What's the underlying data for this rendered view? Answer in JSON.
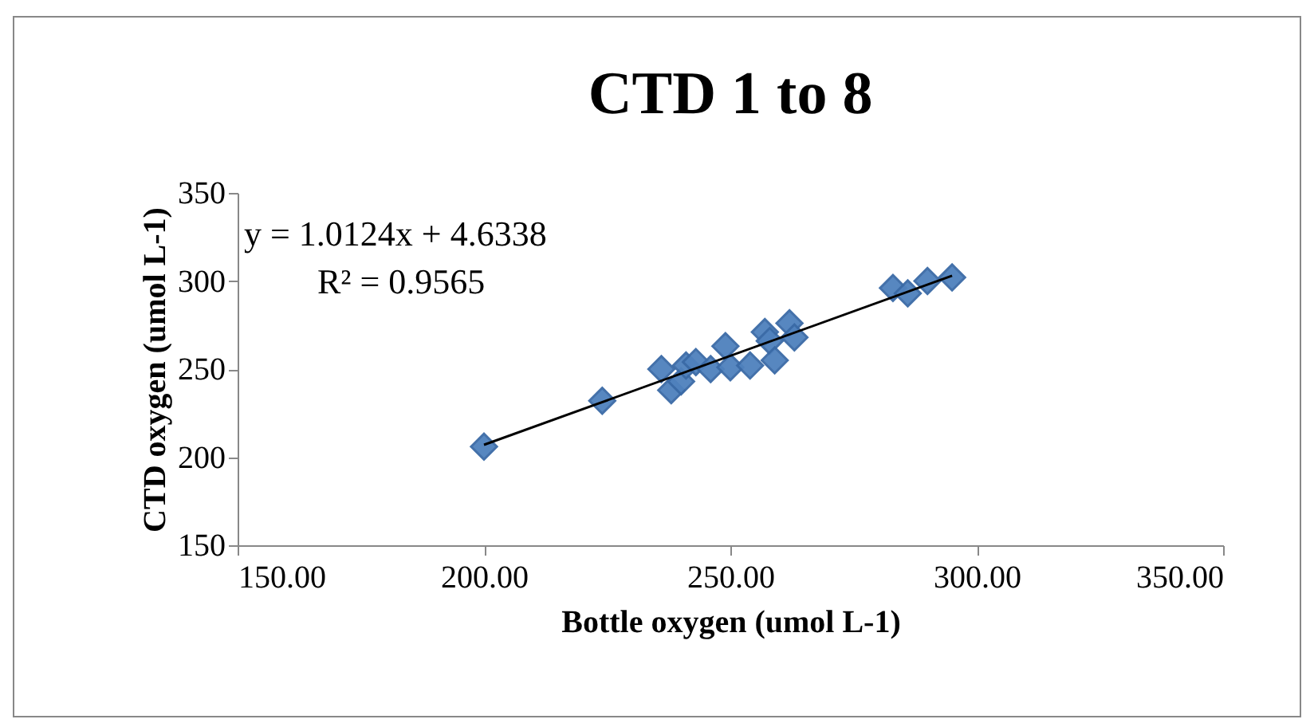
{
  "chart_data": {
    "type": "scatter",
    "title": "CTD 1 to 8",
    "xlabel": "Bottle oxygen (umol L-1)",
    "ylabel": "CTD oxygen (umol L-1)",
    "xlim": [
      150,
      350
    ],
    "xticks": [
      {
        "value": 150,
        "label": "150.00"
      },
      {
        "value": 200,
        "label": "200.00"
      },
      {
        "value": 250,
        "label": "250.00"
      },
      {
        "value": 300,
        "label": "300.00"
      },
      {
        "value": 350,
        "label": "350.00"
      }
    ],
    "ylim": [
      150,
      350
    ],
    "yticks": [
      150,
      200,
      250,
      300,
      350
    ],
    "annotations": [
      "y = 1.0124x + 4.6338",
      "R² = 0.9565"
    ],
    "series": [
      {
        "marker": "diamond",
        "color": "#4f81bd",
        "x": [
          200,
          224,
          236,
          238,
          240,
          241,
          243,
          246,
          249,
          250,
          254,
          257,
          258,
          259,
          262,
          263,
          283,
          286,
          290,
          295
        ],
        "values": [
          206,
          232,
          250,
          238,
          243,
          252,
          254,
          250,
          263,
          251,
          252,
          271,
          266,
          255,
          276,
          268,
          296,
          293,
          300,
          302
        ]
      },
      {
        "type": "line",
        "color": "#000000",
        "x": [
          200,
          295
        ],
        "values": [
          207,
          303
        ]
      }
    ]
  }
}
